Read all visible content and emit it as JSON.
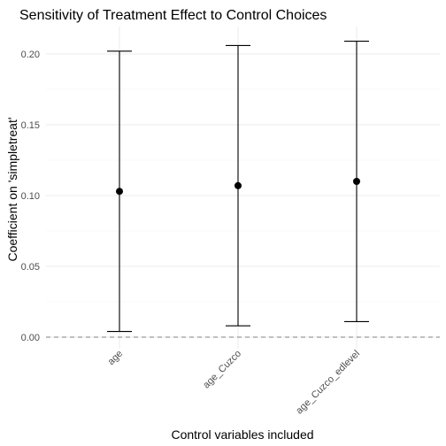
{
  "chart_data": {
    "type": "errorbar",
    "title": "Sensitivity of Treatment Effect to Control Choices",
    "xlabel": "Control variables included",
    "ylabel": "Coefficient on 'simpletreat'",
    "categories": [
      "age",
      "age_Cuzco",
      "age_Cuzco_edlevel"
    ],
    "estimates": [
      0.103,
      0.107,
      0.11
    ],
    "ci_lower": [
      0.004,
      0.008,
      0.011
    ],
    "ci_upper": [
      0.202,
      0.206,
      0.209
    ],
    "yticks": [
      "0.00",
      "0.05",
      "0.10",
      "0.15",
      "0.20"
    ],
    "ytick_values": [
      0.0,
      0.05,
      0.1,
      0.15,
      0.2
    ],
    "ylim": [
      -0.011,
      0.221
    ],
    "reference_line": 0,
    "grid": true,
    "legend": "none",
    "colors": {
      "point": "#000000",
      "errorbar": "#000000",
      "reference": "#808080",
      "grid": "#ebebeb"
    }
  }
}
